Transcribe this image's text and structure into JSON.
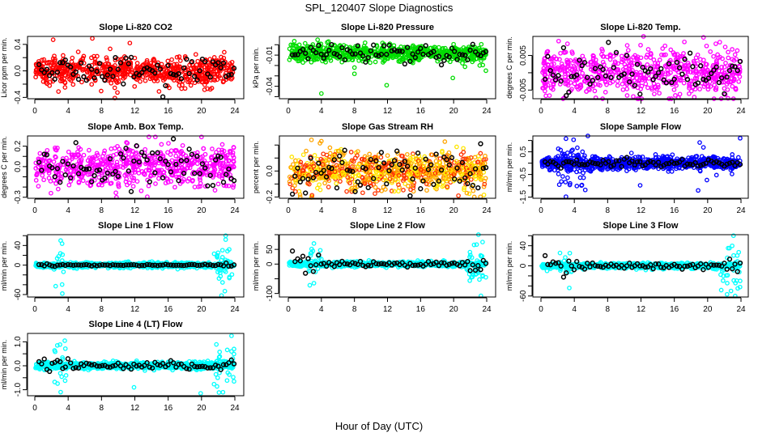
{
  "title": "SPL_120407  Slope Diagnostics",
  "xlabel": "Hour of Day (UTC)",
  "chart_data": [
    {
      "type": "scatter",
      "title": "Slope Li-820 CO2",
      "ylabel": "Licor ppm per min.",
      "color": [
        "#ff0000"
      ],
      "xlim": [
        0,
        24
      ],
      "xticks": [
        0,
        4,
        8,
        12,
        16,
        20,
        24
      ],
      "ylim": [
        -0.42,
        0.52
      ],
      "yticks": [
        -0.4,
        -0.2,
        0.0,
        0.2,
        0.4
      ],
      "ytick_labels": {
        "-0.4": "-0.4",
        "0": "0.0",
        "0.4": "0.4"
      },
      "n": 650,
      "sd": 0.11,
      "black_sd": 0.12,
      "spikes": [],
      "outliers": [
        [
          2.2,
          0.47
        ],
        [
          6.9,
          0.49
        ],
        [
          9.6,
          -0.41
        ],
        [
          14.9,
          -0.31
        ],
        [
          11.4,
          0.42
        ]
      ]
    },
    {
      "type": "scatter",
      "title": "Slope Li-820 Pressure",
      "ylabel": "kPa per min.",
      "color": [
        "#00dd00"
      ],
      "xlim": [
        0,
        24
      ],
      "xticks": [
        0,
        4,
        8,
        12,
        16,
        20,
        24
      ],
      "ylim": [
        -0.052,
        0.008
      ],
      "yticks": [
        -0.05,
        -0.04,
        -0.03,
        -0.02,
        -0.01,
        0.0
      ],
      "ytick_labels": {
        "-0.04": "-0.04",
        "-0.01": "-0.01"
      },
      "center": -0.008,
      "n": 700,
      "sd": 0.004,
      "black_sd": 0.004,
      "spikes": [],
      "outliers": [
        [
          4.0,
          -0.047
        ],
        [
          8.0,
          -0.022
        ],
        [
          8.0,
          -0.028
        ],
        [
          11.9,
          -0.039
        ],
        [
          19.9,
          -0.032
        ],
        [
          23.9,
          -0.025
        ]
      ]
    },
    {
      "type": "scatter",
      "title": "Slope Li-820 Temp.",
      "ylabel": "degrees C per min.",
      "color": [
        "#ff00ff"
      ],
      "xlim": [
        0,
        24
      ],
      "xticks": [
        0,
        4,
        8,
        12,
        16,
        20,
        24
      ],
      "ylim": [
        -0.0075,
        0.0105
      ],
      "yticks": [
        -0.005,
        0.0,
        0.005
      ],
      "ytick_labels": {
        "-0.005": "-0.005",
        "0.005": "0.005"
      },
      "n": 650,
      "sd": 0.0032,
      "black_sd": 0.003,
      "spikes": [],
      "outliers": [
        [
          12.3,
          0.0105
        ],
        [
          19.5,
          0.0102
        ],
        [
          2.8,
          -0.0072
        ]
      ]
    },
    {
      "type": "scatter",
      "title": "Slope Amb. Box Temp.",
      "ylabel": "degrees C per min.",
      "color": [
        "#ff00ff"
      ],
      "xlim": [
        0,
        24
      ],
      "xticks": [
        0,
        4,
        8,
        12,
        16,
        20,
        24
      ],
      "ylim": [
        -0.31,
        0.3
      ],
      "yticks": [
        -0.3,
        -0.2,
        -0.1,
        0.0,
        0.1,
        0.2
      ],
      "ytick_labels": {
        "-0.3": "-0.3",
        "0": "0.0",
        "0.2": "0.2"
      },
      "n": 650,
      "sd": 0.09,
      "black_sd": 0.09,
      "spikes": [],
      "outliers": [
        [
          20.0,
          0.29
        ],
        [
          9.8,
          -0.3
        ],
        [
          2.8,
          -0.22
        ]
      ]
    },
    {
      "type": "scatter",
      "title": "Slope Gas Stream RH",
      "ylabel": "percent per min.",
      "color": [
        "#ffa500",
        "#ff3300",
        "#ffe600"
      ],
      "xlim": [
        0,
        24
      ],
      "xticks": [
        0,
        4,
        8,
        12,
        16,
        20,
        24
      ],
      "ylim": [
        -0.21,
        0.27
      ],
      "yticks": [
        -0.2,
        -0.1,
        0.0,
        0.1,
        0.2
      ],
      "ytick_labels": {
        "-0.2": "-0.2",
        "0": "0.0"
      },
      "n": 800,
      "sd": 0.075,
      "black_sd": 0.08,
      "spikes": [],
      "outliers": [
        [
          2.8,
          0.24
        ],
        [
          4.0,
          0.23
        ],
        [
          22.5,
          -0.2
        ],
        [
          21.6,
          -0.17
        ]
      ]
    },
    {
      "type": "scatter",
      "title": "Slope Sample Flow",
      "ylabel": "ml/min per min.",
      "color": [
        "#0000ff"
      ],
      "xlim": [
        0,
        24
      ],
      "xticks": [
        0,
        4,
        8,
        12,
        16,
        20,
        24
      ],
      "ylim": [
        -1.55,
        1.2
      ],
      "yticks": [
        -1.5,
        -1.0,
        -0.5,
        0.0,
        0.5,
        1.0
      ],
      "ytick_labels": {
        "-1.5": "-1.5",
        "-0.5": "-0.5",
        "0.5": "0.5"
      },
      "n": 900,
      "sd": 0.13,
      "black_sd": 0.1,
      "spikes": [
        {
          "from": 2,
          "to": 6,
          "sd": 0.5
        },
        {
          "from": 18.5,
          "to": 20,
          "sd": 0.4
        },
        {
          "from": 22.5,
          "to": 24,
          "sd": 0.35
        }
      ],
      "outliers": [
        [
          3.0,
          1.08
        ],
        [
          3.0,
          -1.48
        ],
        [
          2.2,
          -0.95
        ],
        [
          11.9,
          -0.98
        ],
        [
          23.9,
          1.1
        ]
      ]
    },
    {
      "type": "scatter",
      "title": "Slope Line 1 Flow",
      "ylabel": "ml/min per min.",
      "color": [
        "#00ffff"
      ],
      "xlim": [
        0,
        24
      ],
      "xticks": [
        0,
        4,
        8,
        12,
        16,
        20,
        24
      ],
      "ylim": [
        -65,
        62
      ],
      "yticks": [
        -60,
        -40,
        -20,
        0,
        20,
        40,
        60
      ],
      "ytick_labels": {
        "-60": "-60",
        "0": "0",
        "40": "40"
      },
      "n": 900,
      "sd": 2.5,
      "black_sd": 0.6,
      "spikes": [
        {
          "from": 2.3,
          "to": 3.6,
          "sd": 15
        },
        {
          "from": 21.5,
          "to": 24,
          "sd": 20
        }
      ],
      "outliers": [
        [
          3.1,
          50
        ],
        [
          3.3,
          -58
        ],
        [
          2.5,
          -43
        ],
        [
          22.9,
          60
        ],
        [
          22.9,
          52
        ],
        [
          22.4,
          -62
        ],
        [
          22.8,
          -53
        ]
      ]
    },
    {
      "type": "scatter",
      "title": "Slope Line 2 Flow",
      "ylabel": "ml/min per min.",
      "color": [
        "#00ffff"
      ],
      "xlim": [
        0,
        24
      ],
      "xticks": [
        0,
        4,
        8,
        12,
        16,
        20,
        24
      ],
      "ylim": [
        -112,
        100
      ],
      "yticks": [
        -100,
        -50,
        0,
        50,
        100
      ],
      "ytick_labels": {
        "-100": "-100",
        "0": "0",
        "50": "50"
      },
      "n": 900,
      "sd": 4,
      "black_sd": 5,
      "spikes": [
        {
          "from": 2.3,
          "to": 4,
          "sd": 25
        },
        {
          "from": 21.5,
          "to": 24,
          "sd": 35
        }
      ],
      "outliers": [
        [
          3.1,
          70
        ],
        [
          2.6,
          -72
        ],
        [
          3.1,
          -65
        ],
        [
          23.0,
          100
        ],
        [
          23.5,
          75
        ],
        [
          23.3,
          -108
        ],
        [
          23.9,
          -45
        ]
      ]
    },
    {
      "type": "scatter",
      "title": "Slope Line 3 Flow",
      "ylabel": "ml/min per min.",
      "color": [
        "#00ffff"
      ],
      "xlim": [
        0,
        24
      ],
      "xticks": [
        0,
        4,
        8,
        12,
        16,
        20,
        24
      ],
      "ylim": [
        -62,
        62
      ],
      "yticks": [
        -60,
        -40,
        -20,
        0,
        20,
        40,
        60
      ],
      "ytick_labels": {
        "-60": "-60",
        "0": "0",
        "40": "40"
      },
      "n": 900,
      "sd": 2.5,
      "black_sd": 3,
      "spikes": [
        {
          "from": 2,
          "to": 4,
          "sd": 10
        },
        {
          "from": 21.5,
          "to": 24,
          "sd": 25
        }
      ],
      "outliers": [
        [
          3.4,
          -44
        ],
        [
          23.1,
          60
        ],
        [
          22.8,
          -50
        ],
        [
          23.3,
          -60
        ],
        [
          23.9,
          -30
        ]
      ]
    },
    {
      "type": "scatter",
      "title": "Slope Line 4 (LT) Flow",
      "ylabel": "ml/min per min.",
      "color": [
        "#00ffff"
      ],
      "xlim": [
        0,
        24
      ],
      "xticks": [
        0,
        4,
        8,
        12,
        16,
        20,
        24
      ],
      "ylim": [
        -1.25,
        1.35
      ],
      "yticks": [
        -1.0,
        -0.5,
        0.0,
        0.5,
        1.0
      ],
      "ytick_labels": {
        "-1": "-1.0",
        "0": "0.0",
        "1": "1.0"
      },
      "n": 900,
      "sd": 0.07,
      "black_sd": 0.08,
      "spikes": [
        {
          "from": 2.3,
          "to": 4,
          "sd": 0.5
        },
        {
          "from": 21.5,
          "to": 24,
          "sd": 0.45
        }
      ],
      "outliers": [
        [
          2.7,
          0.85
        ],
        [
          3.1,
          -1.1
        ],
        [
          11.9,
          -0.9
        ],
        [
          19.9,
          -1.15
        ],
        [
          23.6,
          1.25
        ],
        [
          23.9,
          0.7
        ],
        [
          23.9,
          -0.65
        ]
      ]
    }
  ]
}
